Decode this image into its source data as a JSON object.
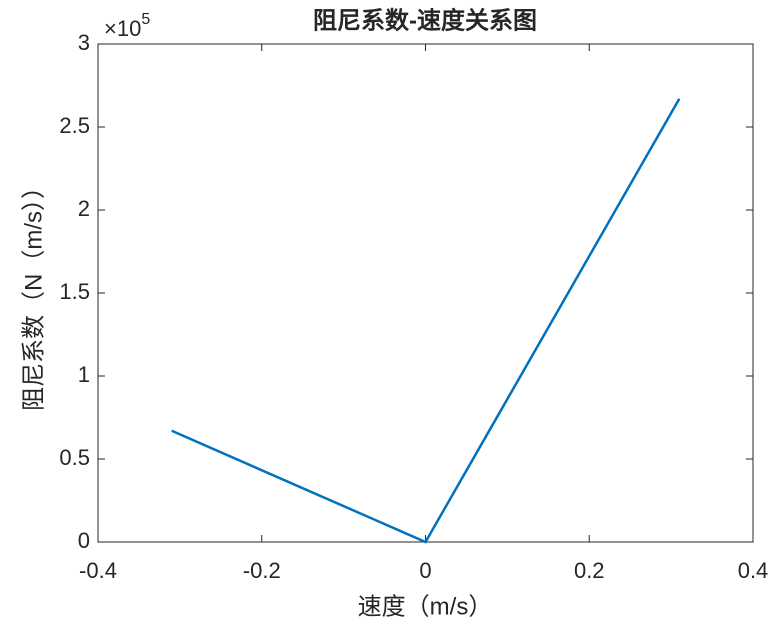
{
  "chart_data": {
    "type": "line",
    "title": "阻尼系数-速度关系图",
    "x_label": "速度（m/s）",
    "y_label": "阻尼系数（N（m/s））",
    "y_exponent_base": "×10",
    "y_exponent": "5",
    "x": [
      -0.31,
      0,
      0.31
    ],
    "series": [
      {
        "name": "阻尼系数",
        "color": "#0072bd",
        "values": [
          0.67,
          0,
          2.67
        ]
      }
    ],
    "xlim": [
      -0.4,
      0.4
    ],
    "xticks": [
      -0.4,
      -0.2,
      0,
      0.2,
      0.4
    ],
    "ylim": [
      0,
      3
    ],
    "yticks": [
      0,
      0.5,
      1,
      1.5,
      2,
      2.5,
      3
    ],
    "grid": false
  }
}
